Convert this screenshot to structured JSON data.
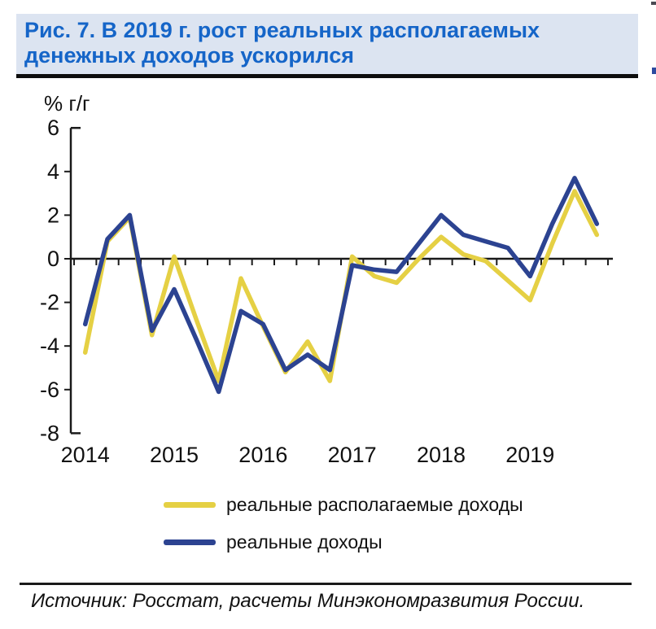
{
  "header": {
    "title_line1": "Рис. 7. В 2019 г. рост реальных располагаемых",
    "title_line2": "денежных доходов ускорился"
  },
  "chart_data": {
    "type": "line",
    "title": "Рис. 7. В 2019 г. рост реальных располагаемых денежных доходов ускорился",
    "ylabel": "% г/г",
    "xlabel": "",
    "grid": false,
    "legend_position": "bottom",
    "ylim": [
      -8,
      6
    ],
    "y_ticks": [
      6,
      4,
      2,
      0,
      -2,
      -4,
      -6,
      -8
    ],
    "x_year_labels": [
      "2014",
      "2015",
      "2016",
      "2017",
      "2018",
      "2019"
    ],
    "categories": [
      "2014Q1",
      "2014Q2",
      "2014Q3",
      "2014Q4",
      "2015Q1",
      "2015Q2",
      "2015Q3",
      "2015Q4",
      "2016Q1",
      "2016Q2",
      "2016Q3",
      "2016Q4",
      "2017Q1",
      "2017Q2",
      "2017Q3",
      "2017Q4",
      "2018Q1",
      "2018Q2",
      "2018Q3",
      "2018Q4",
      "2019Q1",
      "2019Q2",
      "2019Q3",
      "2019Q4"
    ],
    "series": [
      {
        "name": "реальные располагаемые доходы",
        "color": "#e5d044",
        "values": [
          -4.3,
          0.8,
          1.9,
          -3.5,
          0.1,
          -2.8,
          -5.6,
          -0.9,
          -3.1,
          -5.2,
          -3.8,
          -5.6,
          0.1,
          -0.8,
          -1.1,
          0.0,
          1.0,
          0.2,
          -0.1,
          -1.0,
          -1.9,
          0.7,
          3.1,
          1.1
        ]
      },
      {
        "name": "реальные доходы",
        "color": "#2c4391",
        "values": [
          -3.0,
          0.9,
          2.0,
          -3.3,
          -1.4,
          -3.7,
          -6.1,
          -2.4,
          -3.0,
          -5.1,
          -4.4,
          -5.1,
          -0.3,
          -0.5,
          -0.6,
          0.7,
          2.0,
          1.1,
          0.8,
          0.5,
          -0.8,
          1.6,
          3.7,
          1.6
        ]
      }
    ]
  },
  "source": {
    "text": "Источник: Росстат, расчеты Минэкономразвития России."
  },
  "colors": {
    "title_text": "#1565c8",
    "title_background": "#dce4f1",
    "axis": "#1a1a1a"
  }
}
